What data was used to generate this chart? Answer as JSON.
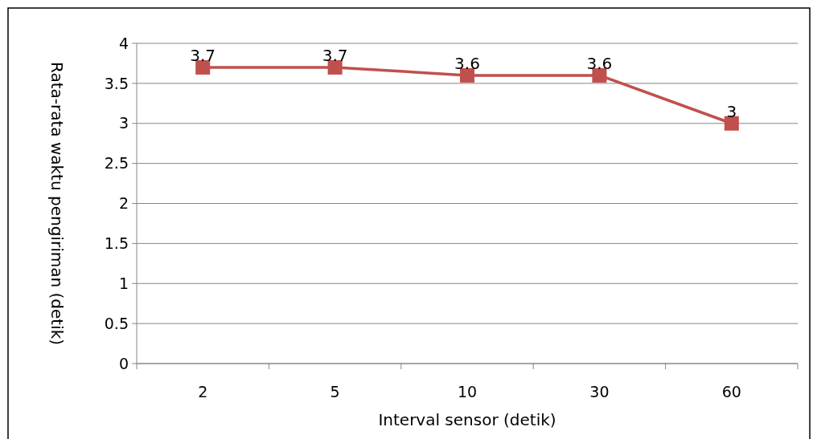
{
  "chart_data": {
    "type": "line",
    "xlabel": "Interval sensor (detik)",
    "ylabel": "Rata-rata waktu pengiriman (detik)",
    "categories": [
      "2",
      "5",
      "10",
      "30",
      "60"
    ],
    "series": [
      {
        "color": "#c0504d",
        "values": [
          3.7,
          3.7,
          3.6,
          3.6,
          3
        ]
      }
    ],
    "ylim": [
      0,
      4
    ],
    "yticks": [
      0,
      0.5,
      1,
      1.5,
      2,
      2.5,
      3,
      3.5,
      4
    ],
    "grid": "y",
    "marker": "square",
    "data_labels": true
  }
}
